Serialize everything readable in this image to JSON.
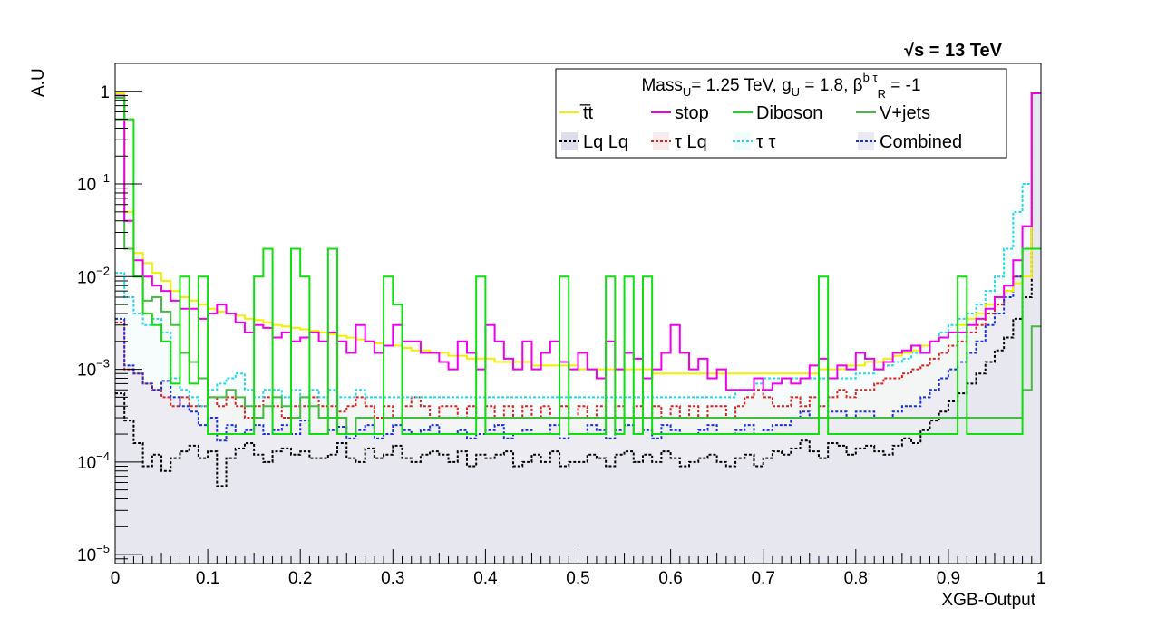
{
  "chart_data": {
    "type": "histogram",
    "energy_label": "√s = 13 TeV",
    "ylabel": "A.U",
    "xlabel": "XGB-Output",
    "x_range": [
      0,
      1
    ],
    "y_scale": "log",
    "y_range": [
      8e-06,
      2
    ],
    "x_ticks": [
      "0",
      "0.1",
      "0.2",
      "0.3",
      "0.4",
      "0.5",
      "0.6",
      "0.7",
      "0.8",
      "0.9",
      "1"
    ],
    "y_ticks": [
      {
        "base": "10",
        "exp": "−5",
        "value": 1e-05
      },
      {
        "base": "10",
        "exp": "−4",
        "value": 0.0001
      },
      {
        "base": "10",
        "exp": "−3",
        "value": 0.001
      },
      {
        "base": "10",
        "exp": "−2",
        "value": 0.01
      },
      {
        "base": "10",
        "exp": "−1",
        "value": 0.1
      },
      {
        "base": "1",
        "exp": "",
        "value": 1
      }
    ],
    "legend": {
      "placement": "top-right",
      "header": {
        "text": "Mass",
        "sub1": "U",
        "text2": "= 1.25 TeV, g",
        "sub2": "U",
        "text3": " = 1.8, β",
        "sup3": "b τ",
        "sub3": "R",
        "text4": " = -1"
      },
      "entries": [
        {
          "label": "t̅t",
          "key": "ttbar"
        },
        {
          "label": "stop",
          "key": "stop"
        },
        {
          "label": "Diboson",
          "key": "diboson"
        },
        {
          "label": "V+jets",
          "key": "vjets"
        },
        {
          "label": "Lq Lq",
          "key": "lqlq"
        },
        {
          "label": "τ Lq",
          "key": "taulq"
        },
        {
          "label": "τ τ",
          "key": "tautau"
        },
        {
          "label": "Combined",
          "key": "combined"
        }
      ]
    },
    "bin_width": 0.01,
    "series": [
      {
        "key": "lqlq",
        "color": "#000000",
        "dashed": true,
        "fill": "#c8c8dc",
        "values": [
          0.00055,
          0.00028,
          0.00016,
          9e-05,
          0.00012,
          8e-05,
          0.00011,
          0.00013,
          0.00015,
          0.00011,
          0.00013,
          5.5e-05,
          0.00011,
          0.00014,
          0.00016,
          0.00012,
          0.0001,
          0.00013,
          0.00014,
          0.00012,
          0.00013,
          0.00011,
          0.00011,
          0.00012,
          0.00016,
          0.00011,
          0.0001,
          0.00014,
          0.00011,
          0.00012,
          0.00015,
          0.00011,
          0.0001,
          0.00012,
          0.00013,
          0.00012,
          0.0001,
          0.00013,
          9e-05,
          0.00012,
          0.00011,
          0.00012,
          0.00013,
          9e-05,
          0.0001,
          0.00012,
          0.0001,
          0.00013,
          9e-05,
          0.0001,
          0.0001,
          0.00012,
          0.00011,
          9e-05,
          0.00012,
          0.00013,
          0.0001,
          0.00012,
          0.0001,
          0.00013,
          0.00011,
          9e-05,
          0.0001,
          0.00011,
          0.00012,
          0.0001,
          9e-05,
          0.00011,
          0.00012,
          9e-05,
          0.00011,
          0.00013,
          0.00012,
          0.00014,
          0.00017,
          0.00013,
          0.00011,
          0.00016,
          0.00015,
          0.00012,
          0.00014,
          0.00015,
          0.00013,
          0.00012,
          0.00015,
          0.00018,
          0.00016,
          0.00022,
          0.00028,
          0.00035,
          0.00045,
          0.00055,
          0.0007,
          0.0009,
          0.0012,
          0.0016,
          0.0022,
          0.0035,
          0.006,
          0.95
        ]
      },
      {
        "key": "taulq",
        "color": "#dd2020",
        "dashed": true,
        "fill": "#f2dede",
        "values": [
          0.0032,
          0.001,
          0.0009,
          0.0007,
          0.0006,
          0.0005,
          0.0004,
          0.0005,
          0.0004,
          0.0004,
          0.0005,
          0.0004,
          0.0005,
          0.0004,
          0.0003,
          0.0004,
          0.0005,
          0.0004,
          0.0003,
          0.0004,
          0.0004,
          0.0005,
          0.0004,
          0.0004,
          0.00035,
          0.0004,
          0.0005,
          0.0004,
          0.0003,
          0.0004,
          0.0003,
          0.0004,
          0.0005,
          0.0004,
          0.0003,
          0.0004,
          0.0004,
          0.0003,
          0.0004,
          0.0003,
          0.0004,
          0.0003,
          0.0004,
          0.0003,
          0.0004,
          0.0003,
          0.0004,
          0.0003,
          0.0004,
          0.0003,
          0.0004,
          0.0003,
          0.0004,
          0.0003,
          0.0004,
          0.0003,
          0.0004,
          0.0003,
          0.0004,
          0.0003,
          0.0004,
          0.0003,
          0.0004,
          0.0003,
          0.0004,
          0.0004,
          0.0003,
          0.0004,
          0.0005,
          0.0006,
          0.0005,
          0.0004,
          0.0004,
          0.0005,
          0.0004,
          0.0005,
          0.0004,
          0.0005,
          0.0006,
          0.0005,
          0.0006,
          0.0006,
          0.0007,
          0.0008,
          0.0008,
          0.0009,
          0.001,
          0.0011,
          0.0013,
          0.0015,
          0.0018,
          0.002,
          0.0025,
          0.003,
          0.004,
          0.005,
          0.007,
          0.01,
          0.02,
          0.95
        ]
      },
      {
        "key": "tautau",
        "color": "#22d8e8",
        "dashed": true,
        "fill": "#e8f8fa",
        "values": [
          0.011,
          0.006,
          0.004,
          0.003,
          0.0035,
          0.0025,
          0.0008,
          0.0006,
          0.0005,
          0.0004,
          0.0006,
          0.0007,
          0.0008,
          0.0009,
          0.0006,
          0.0005,
          0.0006,
          0.0006,
          0.0005,
          0.0006,
          0.0005,
          0.0006,
          0.0005,
          0.0006,
          0.0005,
          0.0005,
          0.0006,
          0.0005,
          0.0005,
          0.0005,
          0.0005,
          0.0005,
          0.0005,
          0.0005,
          0.0005,
          0.0005,
          0.0005,
          0.0005,
          0.0005,
          0.0005,
          0.0005,
          0.0005,
          0.0005,
          0.0005,
          0.0005,
          0.0005,
          0.0005,
          0.0005,
          0.0005,
          0.0005,
          0.0005,
          0.0005,
          0.0005,
          0.0005,
          0.0005,
          0.0005,
          0.0005,
          0.0005,
          0.0005,
          0.0005,
          0.0005,
          0.0005,
          0.0005,
          0.0005,
          0.0005,
          0.0005,
          0.0005,
          0.0006,
          0.0006,
          0.0007,
          0.0008,
          0.0008,
          0.0008,
          0.0008,
          0.0008,
          0.0008,
          0.0008,
          0.0008,
          0.0008,
          0.0008,
          0.0009,
          0.0009,
          0.001,
          0.0011,
          0.0012,
          0.0013,
          0.0015,
          0.0018,
          0.002,
          0.0025,
          0.003,
          0.0035,
          0.004,
          0.005,
          0.007,
          0.01,
          0.02,
          0.05,
          0.1,
          0.95
        ]
      },
      {
        "key": "combined",
        "color": "#1a2ee0",
        "dashed": true,
        "fill": "#dcdcee",
        "values": [
          0.0035,
          0.0011,
          0.0009,
          0.0007,
          0.0006,
          0.00075,
          0.0005,
          0.0004,
          0.00035,
          0.00025,
          0.0003,
          0.00017,
          0.00025,
          0.0002,
          0.00022,
          0.00025,
          0.0002,
          0.00022,
          0.00025,
          0.0002,
          0.00028,
          0.0002,
          0.0002,
          0.00022,
          0.00024,
          0.00018,
          0.00022,
          0.00025,
          0.00018,
          0.0002,
          0.00025,
          0.00022,
          0.0002,
          0.00022,
          0.00025,
          0.0002,
          0.0002,
          0.00022,
          0.00018,
          0.0002,
          0.00022,
          0.00025,
          0.00018,
          0.0002,
          0.00022,
          0.0002,
          0.0002,
          0.00025,
          0.00018,
          0.0002,
          0.0002,
          0.00025,
          0.00022,
          0.00018,
          0.00022,
          0.00025,
          0.0002,
          0.00022,
          0.00018,
          0.00025,
          0.00022,
          0.0002,
          0.0002,
          0.00022,
          0.00025,
          0.0002,
          0.0002,
          0.00022,
          0.00025,
          0.0002,
          0.00022,
          0.00025,
          0.00025,
          0.0003,
          0.00035,
          0.0003,
          0.0003,
          0.00035,
          0.00035,
          0.0003,
          0.00035,
          0.00035,
          0.0003,
          0.0003,
          0.00035,
          0.0004,
          0.0004,
          0.0005,
          0.0006,
          0.0008,
          0.001,
          0.0012,
          0.0015,
          0.002,
          0.003,
          0.004,
          0.006,
          0.01,
          0.02,
          0.95
        ]
      },
      {
        "key": "vjets",
        "color": "#44bb44",
        "dashed": false,
        "fill": null,
        "values": [
          0.5,
          0.02,
          0.01,
          0.0055,
          0.006,
          0.0042,
          0.003,
          0.0015,
          0.0012,
          0.0008,
          0.0005,
          0.0005,
          0.0006,
          0.0005,
          0.0004,
          0.0003,
          0.0004,
          0.0005,
          0.0004,
          0.0003,
          0.0005,
          0.0004,
          0.0003,
          0.0003,
          0.0003,
          0.0002,
          0.0003,
          0.0003,
          0.0002,
          0.0003,
          0.0003,
          0.0003,
          0.0003,
          0.0003,
          0.0003,
          0.0003,
          0.0003,
          0.0003,
          0.0003,
          0.0003,
          0.0003,
          0.0003,
          0.0003,
          0.0003,
          0.0003,
          0.0003,
          0.0003,
          0.0003,
          0.0003,
          0.0003,
          0.0003,
          0.0003,
          0.0003,
          0.0003,
          0.0003,
          0.0003,
          0.0003,
          0.0003,
          0.0003,
          0.0003,
          0.0003,
          0.0003,
          0.0003,
          0.0003,
          0.0003,
          0.0003,
          0.0003,
          0.0003,
          0.0003,
          0.0003,
          0.0003,
          0.0003,
          0.0003,
          0.0003,
          0.0003,
          0.0003,
          0.0003,
          0.0003,
          0.0003,
          0.0003,
          0.0003,
          0.0003,
          0.0003,
          0.0003,
          0.0003,
          0.0003,
          0.0003,
          0.0003,
          0.0003,
          0.0003,
          0.0003,
          0.0003,
          0.0003,
          0.0003,
          0.0003,
          0.0003,
          0.0003,
          0.0003,
          0.0006,
          0.0029
        ]
      },
      {
        "key": "ttbar",
        "color": "#f0f000",
        "dashed": false,
        "fill": null,
        "values": [
          0.95,
          0.05,
          0.018,
          0.014,
          0.011,
          0.009,
          0.007,
          0.006,
          0.0055,
          0.005,
          0.0045,
          0.0042,
          0.004,
          0.0038,
          0.0035,
          0.0034,
          0.0032,
          0.003,
          0.0029,
          0.0028,
          0.0027,
          0.0026,
          0.0025,
          0.0024,
          0.0023,
          0.0022,
          0.0021,
          0.002,
          0.0019,
          0.0018,
          0.0018,
          0.0017,
          0.0016,
          0.0016,
          0.0015,
          0.0015,
          0.0014,
          0.0014,
          0.0013,
          0.0013,
          0.0013,
          0.0012,
          0.0012,
          0.0012,
          0.0012,
          0.0011,
          0.0011,
          0.0011,
          0.0011,
          0.0011,
          0.001,
          0.001,
          0.001,
          0.001,
          0.001,
          0.001,
          0.001,
          0.001,
          0.0009,
          0.0009,
          0.0009,
          0.0009,
          0.0009,
          0.0009,
          0.0009,
          0.0009,
          0.0009,
          0.0009,
          0.0009,
          0.0009,
          0.0009,
          0.0009,
          0.0009,
          0.0009,
          0.0009,
          0.0009,
          0.001,
          0.001,
          0.001,
          0.0011,
          0.0011,
          0.0012,
          0.0012,
          0.0013,
          0.0014,
          0.0015,
          0.0016,
          0.0018,
          0.002,
          0.0022,
          0.0025,
          0.003,
          0.0035,
          0.004,
          0.005,
          0.006,
          0.007,
          0.0085,
          0.01,
          0.95
        ]
      },
      {
        "key": "stop",
        "color": "#ee00ee",
        "dashed": false,
        "fill": null,
        "values": [
          0.9,
          0.04,
          0.015,
          0.01,
          0.008,
          0.007,
          0.0055,
          0.0045,
          0.0045,
          0.0035,
          0.004,
          0.005,
          0.004,
          0.0032,
          0.0025,
          0.003,
          0.0028,
          0.0022,
          0.0025,
          0.002,
          0.0022,
          0.0025,
          0.002,
          0.0025,
          0.002,
          0.0015,
          0.003,
          0.002,
          0.0015,
          0.0018,
          0.003,
          0.002,
          0.002,
          0.0015,
          0.0015,
          0.0012,
          0.001,
          0.002,
          0.0015,
          0.001,
          0.003,
          0.002,
          0.0013,
          0.001,
          0.002,
          0.001,
          0.0015,
          0.002,
          0.0012,
          0.001,
          0.0015,
          0.001,
          0.0008,
          0.002,
          0.001,
          0.0015,
          0.0013,
          0.0008,
          0.001,
          0.0015,
          0.003,
          0.0015,
          0.001,
          0.0013,
          0.0008,
          0.001,
          0.0006,
          0.0006,
          0.0006,
          0.0008,
          0.0006,
          0.0007,
          0.0008,
          0.0007,
          0.0008,
          0.0011,
          0.0013,
          0.0008,
          0.0011,
          0.001,
          0.0015,
          0.0013,
          0.001,
          0.0012,
          0.0015,
          0.0016,
          0.0018,
          0.0015,
          0.002,
          0.0022,
          0.0025,
          0.0025,
          0.003,
          0.0035,
          0.0045,
          0.006,
          0.008,
          0.015,
          0.035,
          0.95
        ]
      },
      {
        "key": "diboson",
        "color": "#11dd11",
        "dashed": false,
        "fill": null,
        "values": [
          0.85,
          0.5,
          0.01,
          0.004,
          0.003,
          0.002,
          0.0007,
          0.01,
          0.0007,
          0.01,
          0.0002,
          0.0002,
          0.0002,
          0.0002,
          0.0002,
          0.01,
          0.02,
          0.0002,
          0.0002,
          0.02,
          0.01,
          0.0002,
          0.0002,
          0.02,
          0.0002,
          0.0002,
          0.0002,
          0.0002,
          0.0002,
          0.01,
          0.005,
          0.0002,
          0.0002,
          0.0002,
          0.0002,
          0.0002,
          0.0002,
          0.0002,
          0.0002,
          0.01,
          0.0002,
          0.0002,
          0.0002,
          0.0002,
          0.0002,
          0.0002,
          0.0002,
          0.0002,
          0.01,
          0.0002,
          0.0002,
          0.0002,
          0.0002,
          0.01,
          0.0002,
          0.01,
          0.0002,
          0.01,
          0.0002,
          0.0002,
          0.0002,
          0.0002,
          0.0002,
          0.0002,
          0.0002,
          0.0002,
          0.0002,
          0.0002,
          0.0002,
          0.0002,
          0.0002,
          0.0002,
          0.0002,
          0.0002,
          0.0002,
          0.0002,
          0.01,
          0.0002,
          0.0002,
          0.0002,
          0.0002,
          0.0002,
          0.0002,
          0.0002,
          0.0002,
          0.0002,
          0.0002,
          0.0002,
          0.0002,
          0.0002,
          0.0002,
          0.01,
          0.0002,
          0.0002,
          0.0002,
          0.0002,
          0.0002,
          0.0002,
          0.02,
          0.02
        ]
      }
    ]
  }
}
